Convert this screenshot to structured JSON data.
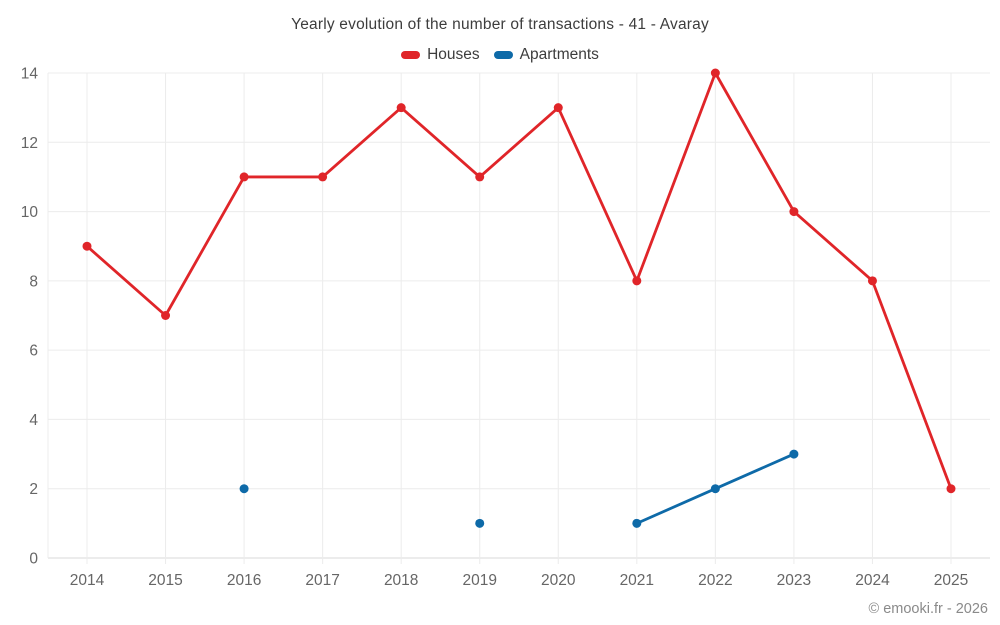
{
  "chart": {
    "title": "Yearly evolution of the number of transactions - 41 - Avaray",
    "footer": "© emooki.fr - 2026"
  },
  "chart_data": {
    "type": "line",
    "title": "Yearly evolution of the number of transactions - 41 - Avaray",
    "categories": [
      "2014",
      "2015",
      "2016",
      "2017",
      "2018",
      "2019",
      "2020",
      "2021",
      "2022",
      "2023",
      "2024",
      "2025"
    ],
    "series": [
      {
        "name": "Houses",
        "color": "#e02529",
        "values": [
          9,
          7,
          11,
          11,
          13,
          11,
          13,
          8,
          14,
          10,
          8,
          2
        ]
      },
      {
        "name": "Apartments",
        "color": "#0e6aa8",
        "values": [
          null,
          null,
          2,
          null,
          null,
          1,
          null,
          1,
          2,
          3,
          null,
          null
        ]
      }
    ],
    "xlabel": "",
    "ylabel": "",
    "ylim": [
      0,
      14
    ],
    "ytick_step": 2,
    "grid": true,
    "legend_position": "top",
    "annotations": [
      "© emooki.fr - 2026"
    ],
    "colors": {
      "grid_line": "#ececec",
      "axis_line": "#d8d8d8",
      "tick_label": "#666666",
      "title_text": "#3d3d3d",
      "footer_text": "#8a8a8a",
      "background": "#ffffff"
    }
  }
}
